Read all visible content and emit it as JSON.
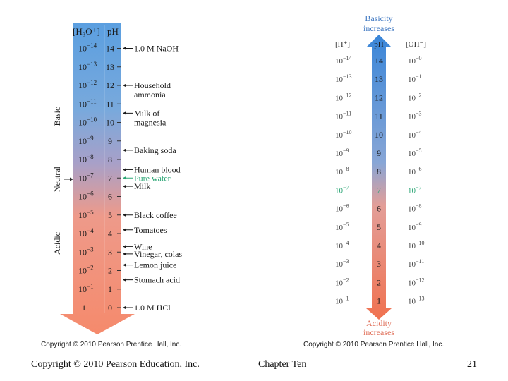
{
  "colors": {
    "basic": "#5b9fe0",
    "neutral": "#a8a0c8",
    "acidic": "#f58a6c",
    "green": "#2aa574",
    "label_blue": "#3f78c2"
  },
  "left_diagram": {
    "col_h3o_header": "[H₃O⁺]",
    "col_ph_header": "pH",
    "region_basic": "Basic",
    "region_neutral": "Neutral",
    "region_acidic": "Acidic",
    "exponents": [
      "−14",
      "−13",
      "−12",
      "−11",
      "−10",
      "−9",
      "−8",
      "−7",
      "−6",
      "−5",
      "−4",
      "−3",
      "−2",
      "−1"
    ],
    "base": "10",
    "bottom_conc": "1",
    "ph_values": [
      "14",
      "13",
      "12",
      "11",
      "10",
      "9",
      "8",
      "7",
      "6",
      "5",
      "4",
      "3",
      "2",
      "1",
      "0"
    ],
    "substances": [
      {
        "ph": 14,
        "lines": [
          "1.0 M NaOH"
        ],
        "green": false
      },
      {
        "ph": 12,
        "lines": [
          "Household",
          "ammonia"
        ],
        "green": false
      },
      {
        "ph": 10.5,
        "lines": [
          "Milk of",
          "magnesia"
        ],
        "green": false
      },
      {
        "ph": 8.5,
        "lines": [
          "Baking soda"
        ],
        "green": false
      },
      {
        "ph": 7.45,
        "lines": [
          "Human blood"
        ],
        "green": false
      },
      {
        "ph": 7,
        "lines": [
          "Pure water"
        ],
        "green": true
      },
      {
        "ph": 6.55,
        "lines": [
          "Milk"
        ],
        "green": false
      },
      {
        "ph": 5,
        "lines": [
          "Black coffee"
        ],
        "green": false
      },
      {
        "ph": 4.2,
        "lines": [
          "Tomatoes"
        ],
        "green": false
      },
      {
        "ph": 3.3,
        "lines": [
          "Wine"
        ],
        "green": false
      },
      {
        "ph": 2.9,
        "lines": [
          "Vinegar, colas"
        ],
        "green": false
      },
      {
        "ph": 2.3,
        "lines": [
          "Lemon juice"
        ],
        "green": false
      },
      {
        "ph": 1.5,
        "lines": [
          "Stomach acid"
        ],
        "green": false
      },
      {
        "ph": 0,
        "lines": [
          "1.0 M HCl"
        ],
        "green": false
      }
    ],
    "copyright": "Copyright © 2010 Pearson Prentice Hall, Inc."
  },
  "right_diagram": {
    "top_label_1": "Basicity",
    "top_label_2": "increases",
    "bottom_label_1": "Acidity",
    "bottom_label_2": "increases",
    "col_h_header": "[H⁺]",
    "col_ph_header": "pH",
    "col_oh_header": "[OH⁻]",
    "base": "10",
    "h_exponents": [
      "−14",
      "−13",
      "−12",
      "−11",
      "−10",
      "−9",
      "−8",
      "−7",
      "−6",
      "−5",
      "−4",
      "−3",
      "−2",
      "−1"
    ],
    "ph_values": [
      "14",
      "13",
      "12",
      "11",
      "10",
      "9",
      "8",
      "7",
      "6",
      "5",
      "4",
      "3",
      "2",
      "1"
    ],
    "oh_exponents": [
      "−0",
      "−1",
      "−2",
      "−3",
      "−4",
      "−5",
      "−6",
      "−7",
      "−8",
      "−9",
      "−10",
      "−11",
      "−12",
      "−13"
    ],
    "copyright": "Copyright © 2010 Pearson Prentice Hall, Inc."
  },
  "footer": {
    "left": "Copyright © 2010 Pearson Education, Inc.",
    "center": "Chapter Ten",
    "right": "21"
  }
}
